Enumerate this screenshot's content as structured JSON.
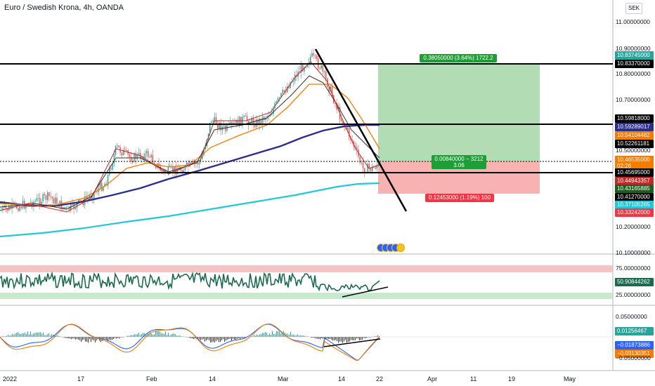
{
  "header": {
    "title": "Euro / Swedish Krona, 4h, OANDA",
    "currency_button": "SEK"
  },
  "price_axis": {
    "labels": [
      "11.00000000",
      "10.90000000",
      "10.80000000",
      "10.70000000",
      "10.50000000",
      "10.20000000",
      "10.10000000"
    ]
  },
  "price_tags": [
    {
      "text": "10.83745000",
      "color": "#26a69a"
    },
    {
      "text": "10.83370000",
      "color": "#000000"
    },
    {
      "text": "10.59818000",
      "color": "#000000"
    },
    {
      "text": "10.59289017",
      "color": "#2a2e8c"
    },
    {
      "text": "10.54104482",
      "color": "#f57c00"
    },
    {
      "text": "10.52261181",
      "color": "#000000"
    },
    {
      "text": "10.46535000",
      "color": "#f57c00"
    },
    {
      "text": "02:26",
      "color": "#f57c00"
    },
    {
      "text": "10.45695000",
      "color": "#000000"
    },
    {
      "text": "10.44943357",
      "color": "#c62828"
    },
    {
      "text": "10.43165885",
      "color": "#1b5e20"
    },
    {
      "text": "10.41270000",
      "color": "#000000"
    },
    {
      "text": "10.37105265",
      "color": "#26c6da"
    },
    {
      "text": "10.33242000",
      "color": "#f23645"
    }
  ],
  "trade_boxes": {
    "target": "0.38050000 (3.64%) 1722.2",
    "entry_line1": "0.00840000 − 3212",
    "entry_line2": "3.06",
    "stop": "0.12453000 (1.19%) 100"
  },
  "rsi_axis": {
    "labels": [
      "75.00000000",
      "25.00000000"
    ],
    "current": "50.90844262",
    "current_color": "#1b6b4e"
  },
  "macd_axis": {
    "labels": [
      "0.05000000",
      "−0.05000000"
    ],
    "tags": [
      {
        "text": "0.01256467",
        "color": "#26a69a"
      },
      {
        "text": "−0.01873886",
        "color": "#2962ff"
      },
      {
        "text": "−0.03130351",
        "color": "#f57c00"
      }
    ]
  },
  "time_axis": [
    "2022",
    "17",
    "Feb",
    "14",
    "Mar",
    "14",
    "22",
    "Apr",
    "11",
    "19",
    "May"
  ],
  "colors": {
    "candle_up": "#26a69a",
    "candle_down": "#ef5350",
    "ma_blue": "#2a2e8c",
    "ma_cyan": "#26c6da",
    "ma_orange": "#f57c00",
    "rsi_line": "#1b6b4e",
    "profit_zone": "#a5d6a7",
    "loss_zone": "#f8a5a5"
  }
}
